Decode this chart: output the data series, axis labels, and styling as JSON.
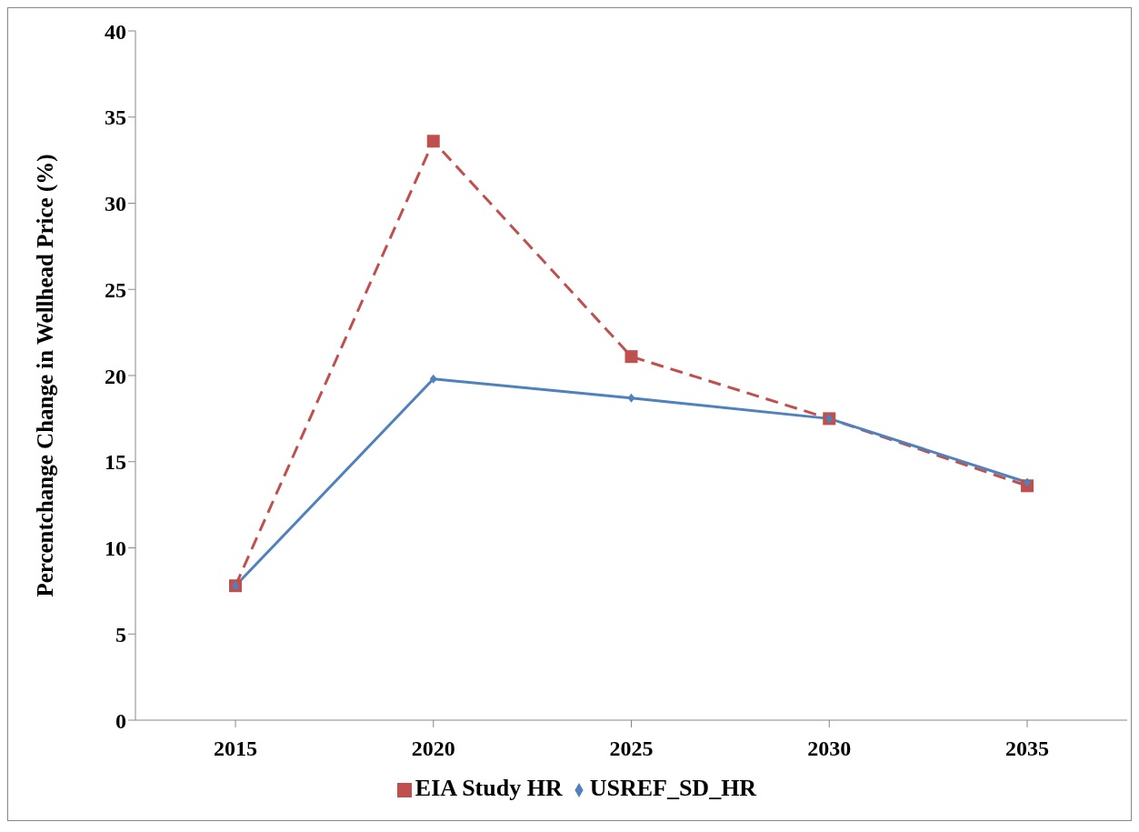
{
  "chart_data": {
    "type": "line",
    "ylabel": "Percentchange Change in Wellhead Price (%)",
    "categories": [
      "2015",
      "2020",
      "2025",
      "2030",
      "2035"
    ],
    "series": [
      {
        "name": "EIA Study HR",
        "color": "#c0504d",
        "values": [
          7.8,
          33.6,
          21.1,
          17.5,
          13.6
        ],
        "marker": "square",
        "line_style": "dashed"
      },
      {
        "name": "USREF_SD_HR",
        "color": "#4f81bd",
        "values": [
          7.8,
          19.8,
          18.7,
          17.5,
          13.8
        ],
        "marker": "diamond",
        "line_style": "solid"
      }
    ],
    "ylim": [
      0,
      40
    ],
    "yticks": [
      0,
      5,
      10,
      15,
      20,
      25,
      30,
      35,
      40
    ],
    "grid": false,
    "legend": "bottom"
  }
}
